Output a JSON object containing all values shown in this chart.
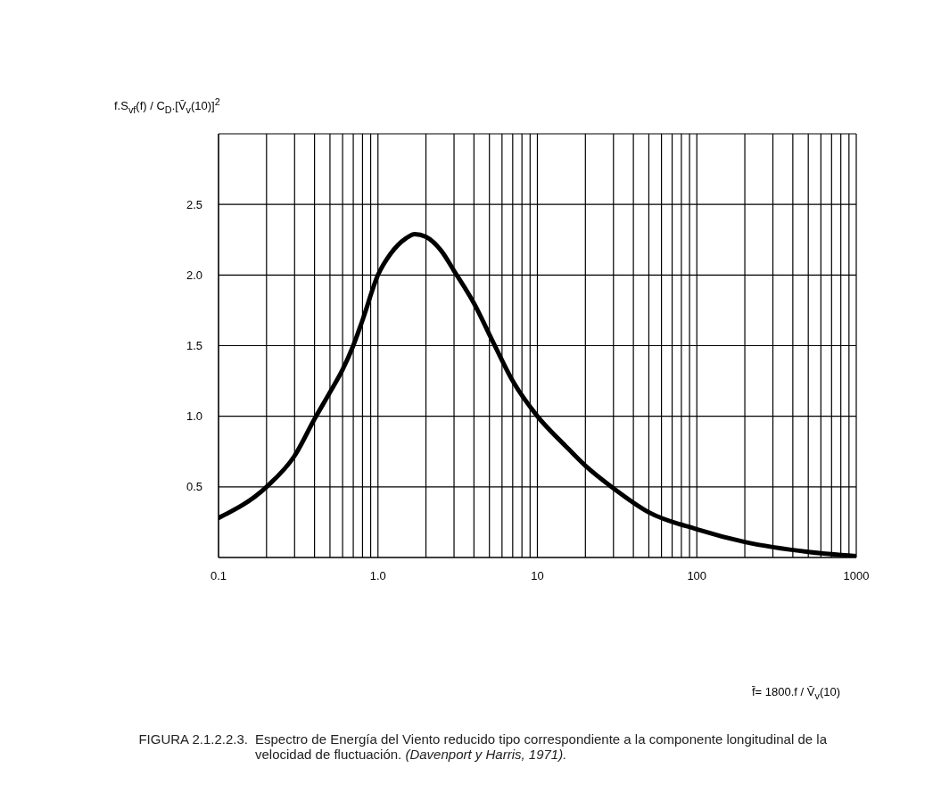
{
  "chart_data": {
    "type": "line",
    "ylabel": "f.S$_{vf}$(f) / C$_{D}$.[V̄$_{v}$(10)]$^{2}$",
    "annotations": [
      "f̄= 1800.f / V̄$_{v}$(10)",
      "FIGURA 2.1.2.2.3.",
      "Espectro de Energía del Viento reducido tipo correspondiente a la componente longitudinal de la velocidad de fluctuación.",
      "(Davenport y Harris, 1971)."
    ],
    "series": [
      {
        "color": "#000000",
        "x": [
          0.1,
          0.2,
          0.3,
          0.4,
          0.5,
          0.6,
          0.7,
          0.8,
          1,
          1.2,
          1.5,
          1.7,
          2,
          2.5,
          3,
          4,
          5.3,
          7,
          10,
          15,
          20,
          30,
          50,
          100,
          200,
          500,
          1000
        ],
        "values": [
          0.28,
          0.5,
          0.72,
          0.98,
          1.17,
          1.33,
          1.5,
          1.68,
          2.0,
          2.15,
          2.26,
          2.29,
          2.27,
          2.17,
          2.03,
          1.8,
          1.52,
          1.25,
          1.0,
          0.79,
          0.65,
          0.49,
          0.32,
          0.2,
          0.11,
          0.04,
          0.01
        ]
      }
    ],
    "log": "x",
    "xlim": [
      0.1,
      1000
    ],
    "ylim": [
      0,
      3
    ],
    "xticks": [
      {
        "value": 0.1,
        "label": "0.1"
      },
      {
        "value": 0.2,
        "label": null
      },
      {
        "value": 0.3,
        "label": null
      },
      {
        "value": 0.4,
        "label": null
      },
      {
        "value": 0.5,
        "label": null
      },
      {
        "value": 0.6,
        "label": null
      },
      {
        "value": 0.7,
        "label": null
      },
      {
        "value": 0.8,
        "label": null
      },
      {
        "value": 0.9,
        "label": null
      },
      {
        "value": 1,
        "label": "1.0"
      },
      {
        "value": 2,
        "label": null
      },
      {
        "value": 3,
        "label": null
      },
      {
        "value": 4,
        "label": null
      },
      {
        "value": 5,
        "label": null
      },
      {
        "value": 6,
        "label": null
      },
      {
        "value": 7,
        "label": null
      },
      {
        "value": 8,
        "label": null
      },
      {
        "value": 9,
        "label": null
      },
      10,
      {
        "value": 20,
        "label": null
      },
      {
        "value": 30,
        "label": null
      },
      {
        "value": 40,
        "label": null
      },
      {
        "value": 50,
        "label": null
      },
      {
        "value": 60,
        "label": null
      },
      {
        "value": 70,
        "label": null
      },
      {
        "value": 80,
        "label": null
      },
      {
        "value": 90,
        "label": null
      },
      100,
      {
        "value": 200,
        "label": null
      },
      {
        "value": 300,
        "label": null
      },
      {
        "value": 400,
        "label": null
      },
      {
        "value": 500,
        "label": null
      },
      {
        "value": 600,
        "label": null
      },
      {
        "value": 700,
        "label": null
      },
      {
        "value": 800,
        "label": null
      },
      {
        "value": 900,
        "label": null
      },
      1000
    ],
    "yticks": [
      {
        "value": 0,
        "label": null
      },
      {
        "value": 0.5,
        "label": "0.5"
      },
      {
        "value": 1,
        "label": "1.0"
      },
      {
        "value": 1.5,
        "label": "1.5"
      },
      {
        "value": 2,
        "label": "2.0"
      },
      {
        "value": 2.5,
        "label": "2.5"
      },
      {
        "value": 3,
        "label": null
      }
    ],
    "grid": true,
    "marker": "none",
    "line_style": "solid"
  }
}
